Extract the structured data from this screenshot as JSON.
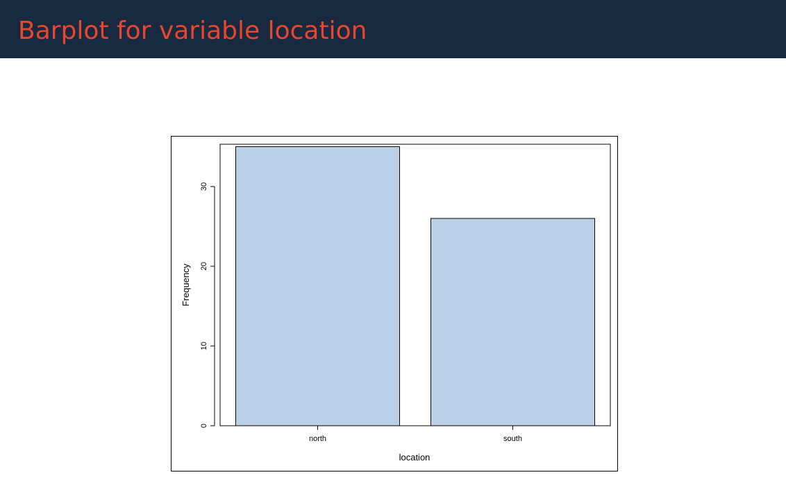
{
  "slide": {
    "title": "Barplot for variable location"
  },
  "chart_data": {
    "type": "bar",
    "categories": [
      "north",
      "south"
    ],
    "values": [
      35,
      26
    ],
    "xlabel": "location",
    "ylabel": "Frequency",
    "ylim": [
      0,
      36
    ],
    "yticks": [
      0,
      10,
      20,
      30
    ],
    "grid": false,
    "bar_color": "#bad0e7",
    "bar_edge_color": "#000000"
  }
}
